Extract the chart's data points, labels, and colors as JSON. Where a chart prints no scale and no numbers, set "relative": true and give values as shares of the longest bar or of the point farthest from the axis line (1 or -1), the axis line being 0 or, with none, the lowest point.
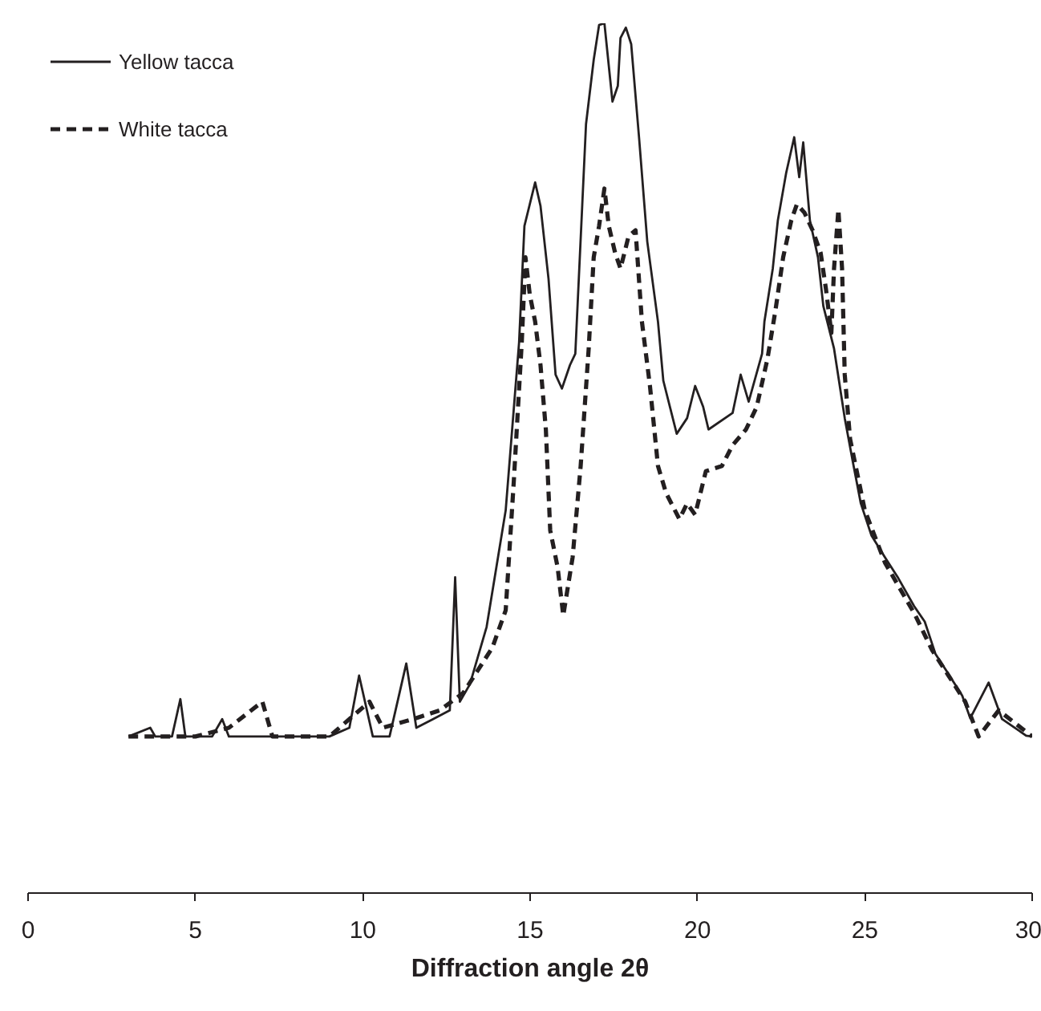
{
  "chart_data": {
    "type": "line",
    "xlabel": "Diffraction angle 2θ",
    "relative": true,
    "xlim": [
      0,
      30
    ],
    "xticks": [
      0,
      5,
      10,
      15,
      20,
      25,
      30
    ],
    "legend": "top left",
    "grid": false,
    "series": [
      {
        "name": "Yellow tacca",
        "color": "#231f20",
        "line_style": "solid",
        "x": [
          3.0,
          3.65,
          3.8,
          4.3,
          4.55,
          4.7,
          5.5,
          5.8,
          6.0,
          6.3,
          7.5,
          9.0,
          9.6,
          9.89,
          10.3,
          10.8,
          11.3,
          11.6,
          12.1,
          12.6,
          12.76,
          12.9,
          13.2,
          13.7,
          14.27,
          14.67,
          14.83,
          15.15,
          15.31,
          15.55,
          15.76,
          15.95,
          16.19,
          16.35,
          16.67,
          16.9,
          17.06,
          17.22,
          17.46,
          17.62,
          17.7,
          17.86,
          18.02,
          18.26,
          18.5,
          18.82,
          18.98,
          19.38,
          19.69,
          19.93,
          20.17,
          20.33,
          21.05,
          21.29,
          21.53,
          21.93,
          22.0,
          22.25,
          22.4,
          22.65,
          22.89,
          23.04,
          23.16,
          23.36,
          23.6,
          23.76,
          24.08,
          24.4,
          24.64,
          24.88,
          25.2,
          25.6,
          26.0,
          26.47,
          26.79,
          27.11,
          27.43,
          27.91,
          28.15,
          28.7,
          29.1,
          29.82,
          30.0
        ],
        "values": [
          0.18,
          0.19,
          0.18,
          0.18,
          0.223,
          0.18,
          0.18,
          0.2,
          0.18,
          0.18,
          0.18,
          0.18,
          0.19,
          0.25,
          0.18,
          0.18,
          0.264,
          0.19,
          0.2,
          0.21,
          0.363,
          0.22,
          0.24,
          0.306,
          0.44,
          0.633,
          0.767,
          0.817,
          0.79,
          0.706,
          0.596,
          0.58,
          0.607,
          0.62,
          0.884,
          0.958,
          0.998,
          1.0,
          0.91,
          0.928,
          0.983,
          0.995,
          0.976,
          0.866,
          0.749,
          0.657,
          0.589,
          0.528,
          0.546,
          0.583,
          0.559,
          0.533,
          0.552,
          0.596,
          0.565,
          0.62,
          0.657,
          0.718,
          0.773,
          0.828,
          0.869,
          0.823,
          0.863,
          0.773,
          0.731,
          0.675,
          0.626,
          0.546,
          0.496,
          0.448,
          0.411,
          0.386,
          0.362,
          0.33,
          0.312,
          0.275,
          0.256,
          0.227,
          0.201,
          0.242,
          0.2,
          0.181,
          0.18
        ]
      },
      {
        "name": "White tacca",
        "color": "#231f20",
        "line_style": "dashed",
        "x": [
          3.0,
          4.0,
          5.0,
          6.0,
          7.0,
          7.3,
          9.0,
          10.2,
          10.6,
          11.5,
          12.3,
          13.0,
          13.87,
          14.27,
          14.51,
          14.75,
          14.86,
          14.99,
          15.15,
          15.31,
          15.47,
          15.6,
          15.82,
          15.99,
          16.27,
          16.51,
          16.75,
          16.9,
          17.06,
          17.22,
          17.35,
          17.54,
          17.7,
          17.94,
          18.15,
          18.34,
          18.58,
          18.82,
          19.06,
          19.46,
          19.69,
          19.93,
          20.25,
          20.73,
          21.05,
          21.45,
          21.77,
          22.09,
          22.33,
          22.56,
          22.8,
          22.97,
          23.2,
          23.44,
          23.68,
          23.84,
          24.0,
          24.08,
          24.21,
          24.32,
          24.4,
          24.56,
          25.0,
          25.6,
          26.5,
          27.0,
          27.5,
          28.0,
          28.4,
          29.0,
          30.0
        ],
        "values": [
          0.18,
          0.18,
          0.18,
          0.19,
          0.22,
          0.18,
          0.18,
          0.22,
          0.19,
          0.2,
          0.21,
          0.23,
          0.282,
          0.325,
          0.472,
          0.633,
          0.731,
          0.688,
          0.657,
          0.607,
          0.533,
          0.417,
          0.375,
          0.319,
          0.386,
          0.491,
          0.626,
          0.731,
          0.767,
          0.81,
          0.767,
          0.736,
          0.718,
          0.755,
          0.762,
          0.657,
          0.583,
          0.491,
          0.46,
          0.43,
          0.448,
          0.435,
          0.485,
          0.491,
          0.515,
          0.533,
          0.559,
          0.614,
          0.67,
          0.731,
          0.773,
          0.792,
          0.782,
          0.762,
          0.736,
          0.694,
          0.644,
          0.718,
          0.786,
          0.718,
          0.596,
          0.522,
          0.44,
          0.38,
          0.32,
          0.28,
          0.25,
          0.22,
          0.18,
          0.21,
          0.18
        ]
      }
    ]
  }
}
